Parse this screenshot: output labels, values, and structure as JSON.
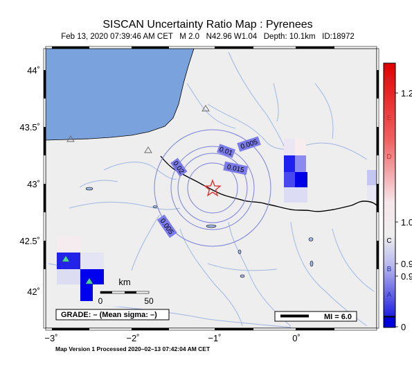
{
  "header": {
    "title": "SISCAN Uncertainty Ratio Map : Pyrenees",
    "event_info": "Feb 13, 2020 07:39:46 AM CET   M 2.0   N42.96 W1.04   Depth: 10.1km   ID:18972"
  },
  "map": {
    "lat_labels": [
      "44˚",
      "43.5˚",
      "43˚",
      "42.5˚",
      "42˚"
    ],
    "lon_labels": [
      "−3˚",
      "−2˚",
      "−1˚",
      "0˚"
    ],
    "contour_labels": [
      "0.005",
      "0.01",
      "0.015",
      "0.02",
      "0.005"
    ],
    "scale_bar": {
      "unit": "km",
      "start": "0",
      "end": "50"
    },
    "grade_box": "GRADE: – (Mean sigma: –)",
    "mi_box": "MI = 6.0",
    "colors": {
      "land": "#eeeeee",
      "ocean": "#7aa3dd",
      "river": "#9fb6e4",
      "contour": "#7a7fe0",
      "epicenter": "#e03030",
      "station": "#4fd98f"
    }
  },
  "colorbar": {
    "left_letters": [
      "F",
      "E",
      "D",
      "C",
      "B",
      "A"
    ],
    "right_values": [
      "1.2",
      "1.0",
      "0.9",
      "0.9",
      "0"
    ]
  },
  "footer": {
    "processed": "Map Version 1 Processed 2020–02–13 07:42:04 AM CET"
  }
}
